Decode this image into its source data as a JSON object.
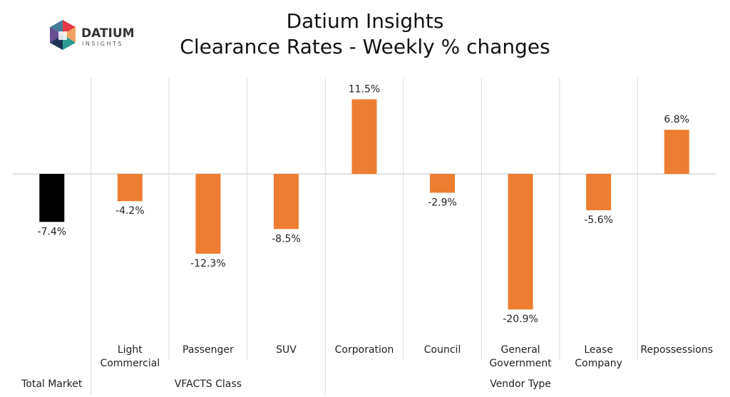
{
  "logo": {
    "name": "DATIUM",
    "sub": "INSIGHTS"
  },
  "colors": {
    "highlight": "#000000",
    "bar": "#ED7D31",
    "grid": "#D9D9D9"
  },
  "chart_data": {
    "type": "bar",
    "title": "Datium Insights",
    "subtitle": "Clearance Rates - Weekly % changes",
    "categories": [
      "Total Market",
      "Light Commercial",
      "Passenger",
      "SUV",
      "Corporation",
      "Council",
      "General Government",
      "Lease Company",
      "Repossessions"
    ],
    "category_lines": [
      [
        "Total Market"
      ],
      [
        "Light",
        "Commercial"
      ],
      [
        "Passenger"
      ],
      [
        "SUV"
      ],
      [
        "Corporation"
      ],
      [
        "Council"
      ],
      [
        "General",
        "Government"
      ],
      [
        "Lease",
        "Company"
      ],
      [
        "Repossessions"
      ]
    ],
    "values": [
      -7.4,
      -4.2,
      -12.3,
      -8.5,
      11.5,
      -2.9,
      -20.9,
      -5.6,
      6.8
    ],
    "data_labels": [
      "-7.4%",
      "-4.2%",
      "-12.3%",
      "-8.5%",
      "11.5%",
      "-2.9%",
      "-20.9%",
      "-5.6%",
      "6.8%"
    ],
    "groups": [
      {
        "label": "",
        "members": [
          "Total Market"
        ]
      },
      {
        "label": "VFACTS Class",
        "members": [
          "Light Commercial",
          "Passenger",
          "SUV"
        ]
      },
      {
        "label": "Vendor Type",
        "members": [
          "Corporation",
          "Council",
          "General Government",
          "Lease Company",
          "Repossessions"
        ]
      }
    ],
    "ylim": [
      -24,
      15
    ],
    "grid": true,
    "legend": "none",
    "xlabel": "",
    "ylabel": ""
  }
}
